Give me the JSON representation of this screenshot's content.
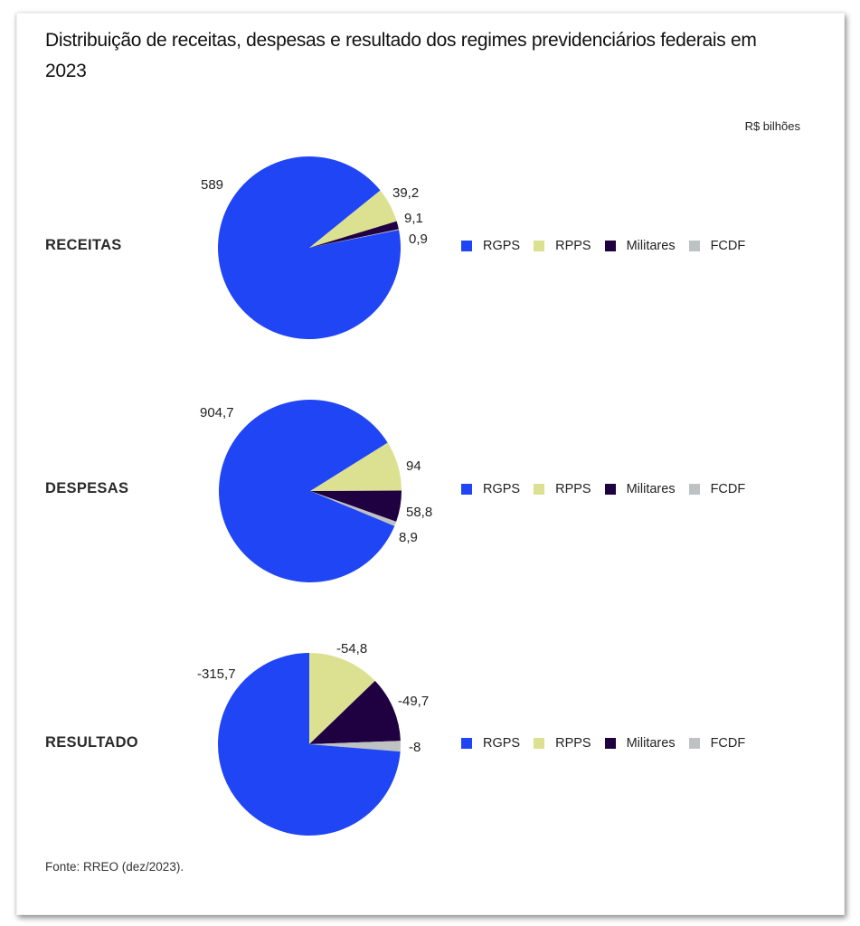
{
  "chart_data": {
    "type": "pie",
    "title": "Distribuição de receitas, despesas e resultado dos regimes previdenciários federais em 2023",
    "unit": "R$ bilhões",
    "source": "Fonte: RREO (dez/2023).",
    "series_names": [
      "RGPS",
      "RPPS",
      "Militares",
      "FCDF"
    ],
    "colors": {
      "RGPS": "#1f45f5",
      "RPPS": "#dce192",
      "Militares": "#1f0041",
      "FCDF": "#bfc2c2"
    },
    "legend_placement": "right",
    "charts": [
      {
        "label": "RECEITAS",
        "slices": [
          {
            "name": "RGPS",
            "value": 589,
            "display": "589"
          },
          {
            "name": "RPPS",
            "value": 39.2,
            "display": "39,2"
          },
          {
            "name": "Militares",
            "value": 9.1,
            "display": "9,1"
          },
          {
            "name": "FCDF",
            "value": 0.9,
            "display": "0,9"
          }
        ]
      },
      {
        "label": "DESPESAS",
        "slices": [
          {
            "name": "RGPS",
            "value": 904.7,
            "display": "904,7"
          },
          {
            "name": "RPPS",
            "value": 94,
            "display": "94"
          },
          {
            "name": "Militares",
            "value": 58.8,
            "display": "58,8"
          },
          {
            "name": "FCDF",
            "value": 8.9,
            "display": "8,9"
          }
        ]
      },
      {
        "label": "RESULTADO",
        "slices": [
          {
            "name": "RGPS",
            "value": -315.7,
            "display": "-315,7"
          },
          {
            "name": "RPPS",
            "value": -54.8,
            "display": "-54,8"
          },
          {
            "name": "Militares",
            "value": -49.7,
            "display": "-49,7"
          },
          {
            "name": "FCDF",
            "value": -8,
            "display": "-8"
          }
        ]
      }
    ]
  }
}
